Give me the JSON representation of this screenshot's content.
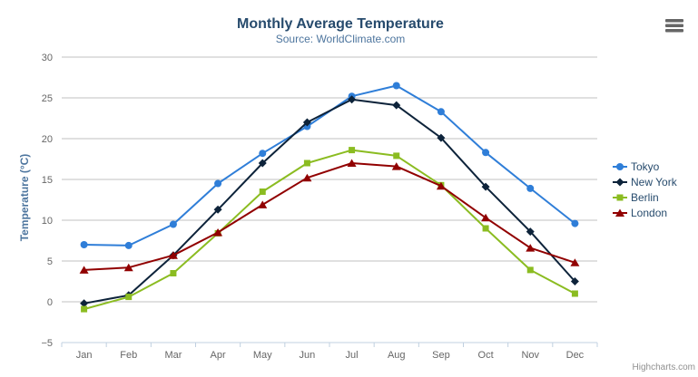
{
  "chart_data": {
    "type": "line",
    "title": "Monthly Average Temperature",
    "subtitle": "Source: WorldClimate.com",
    "xlabel": "",
    "ylabel": "Temperature (°C)",
    "ylim": [
      -5,
      30
    ],
    "ytick_step": 5,
    "grid": true,
    "legend_position": "right",
    "categories": [
      "Jan",
      "Feb",
      "Mar",
      "Apr",
      "May",
      "Jun",
      "Jul",
      "Aug",
      "Sep",
      "Oct",
      "Nov",
      "Dec"
    ],
    "series": [
      {
        "name": "Tokyo",
        "color": "#2f7ed8",
        "marker": "circle",
        "values": [
          7.0,
          6.9,
          9.5,
          14.5,
          18.2,
          21.5,
          25.2,
          26.5,
          23.3,
          18.3,
          13.9,
          9.6
        ]
      },
      {
        "name": "New York",
        "color": "#0d233a",
        "marker": "diamond",
        "values": [
          -0.2,
          0.8,
          5.7,
          11.3,
          17.0,
          22.0,
          24.8,
          24.1,
          20.1,
          14.1,
          8.6,
          2.5
        ]
      },
      {
        "name": "Berlin",
        "color": "#8bbc21",
        "marker": "square",
        "values": [
          -0.9,
          0.6,
          3.5,
          8.4,
          13.5,
          17.0,
          18.6,
          17.9,
          14.3,
          9.0,
          3.9,
          1.0
        ]
      },
      {
        "name": "London",
        "color": "#910000",
        "marker": "triangle",
        "values": [
          3.9,
          4.2,
          5.7,
          8.5,
          11.9,
          15.2,
          17.0,
          16.6,
          14.2,
          10.3,
          6.6,
          4.8
        ]
      }
    ]
  },
  "credits": "Highcharts.com",
  "icons": {
    "context_menu": "hamburger-icon"
  },
  "colors": {
    "title": "#274b6d",
    "subtitle": "#4d759e",
    "axis_title": "#4d759e",
    "axis_label": "#666666",
    "legend_text": "#274b6d",
    "grid": "#c0c0c0",
    "axis_line": "#c0d0e0",
    "credit": "#909090",
    "menu_icon": "#666666",
    "background": "#ffffff"
  }
}
